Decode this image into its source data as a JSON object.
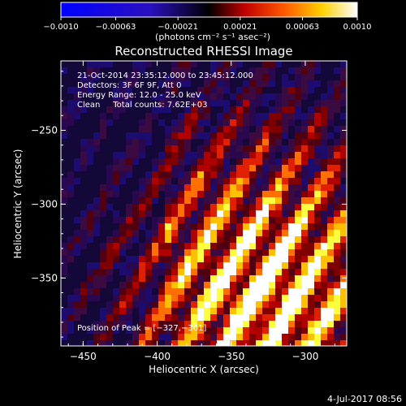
{
  "chart_data": {
    "type": "heatmap",
    "title": "Reconstructed RHESSI Image",
    "xlabel": "Heliocentric X (arcsec)",
    "ylabel": "Heliocentric Y (arcsec)",
    "xlim": [
      -465,
      -272
    ],
    "ylim": [
      -396,
      -203
    ],
    "x_ticks": [
      {
        "value": -450,
        "label": "−450"
      },
      {
        "value": -400,
        "label": "−400"
      },
      {
        "value": -350,
        "label": "−350"
      },
      {
        "value": -300,
        "label": "−300"
      }
    ],
    "y_ticks": [
      {
        "value": -250,
        "label": "−250"
      },
      {
        "value": -300,
        "label": "−300"
      },
      {
        "value": -350,
        "label": "−350"
      }
    ],
    "colorbar": {
      "min": -0.001,
      "max": 0.001,
      "ticks": [
        {
          "value": -0.001,
          "label": "−0.0010"
        },
        {
          "value": -0.00063,
          "label": "−0.00063"
        },
        {
          "value": -0.00021,
          "label": "−0.00021"
        },
        {
          "value": 0.00021,
          "label": "0.00021"
        },
        {
          "value": 0.00063,
          "label": "0.00063"
        },
        {
          "value": 0.001,
          "label": "0.0010"
        }
      ],
      "unit_label": "(photons cm⁻² s⁻¹ asec⁻²)",
      "colors": [
        "#0000ff",
        "#2020ff",
        "#000000",
        "#ff0000",
        "#ff7a00",
        "#ffff00",
        "#ffffff"
      ]
    },
    "annotations": [
      "21-Oct-2014 23:35:12.000 to 23:45:12.000",
      "Detectors: 3F 6F 9F, Att 0",
      "Energy Range: 12.0 - 25.0 keV",
      "Clean     Total counts: 7.62E+03"
    ],
    "peak_label": "Position of Peak = [−327,−361]",
    "peak": {
      "x": -327,
      "y": -361
    }
  },
  "footer_date": "4-Jul-2017 08:56"
}
